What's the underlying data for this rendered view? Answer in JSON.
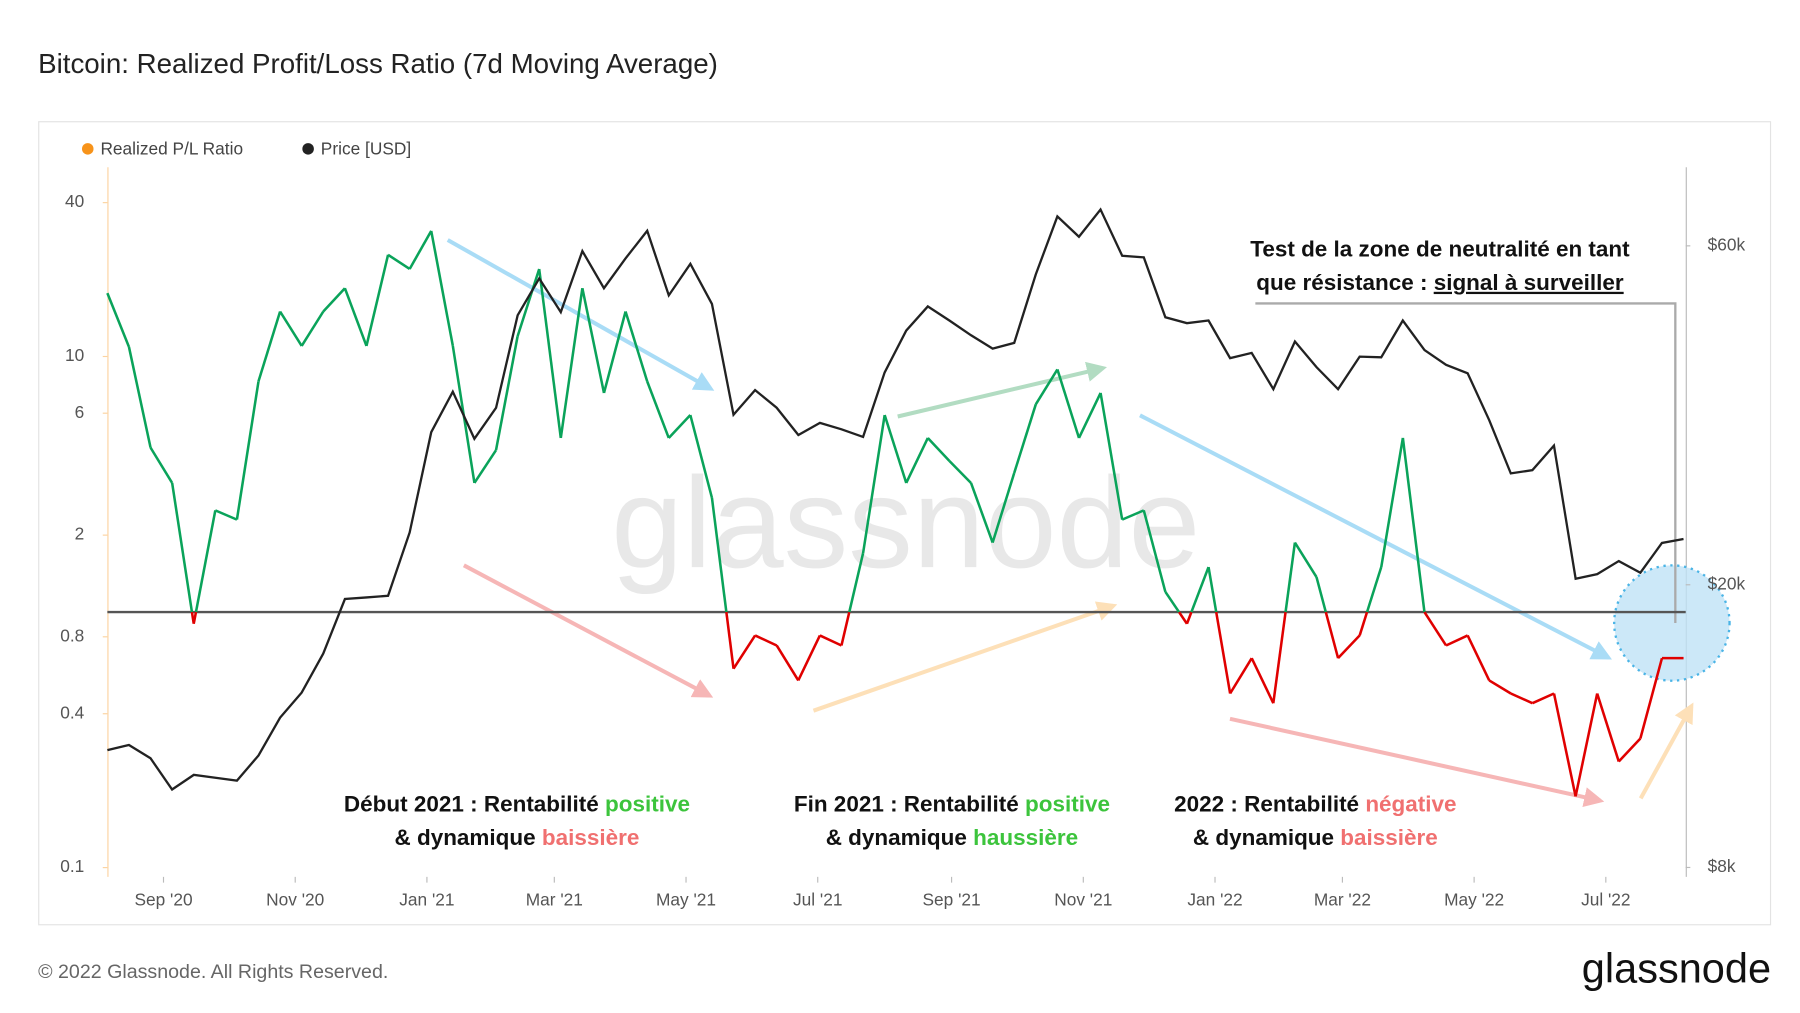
{
  "chart_data": {
    "type": "line",
    "title": "Bitcoin: Realized Profit/Loss Ratio (7d Moving Average)",
    "footer": "© 2022 Glassnode. All Rights Reserved.",
    "logo": "glassnode",
    "watermark": "glassnode",
    "x": [
      "2020-08-06",
      "2020-08-16",
      "2020-08-26",
      "2020-09-05",
      "2020-09-15",
      "2020-09-25",
      "2020-10-05",
      "2020-10-15",
      "2020-10-25",
      "2020-11-04",
      "2020-11-14",
      "2020-11-24",
      "2020-12-04",
      "2020-12-14",
      "2020-12-24",
      "2021-01-03",
      "2021-01-13",
      "2021-01-23",
      "2021-02-02",
      "2021-02-12",
      "2021-02-22",
      "2021-03-04",
      "2021-03-14",
      "2021-03-24",
      "2021-04-03",
      "2021-04-13",
      "2021-04-23",
      "2021-05-03",
      "2021-05-13",
      "2021-05-23",
      "2021-06-02",
      "2021-06-12",
      "2021-06-22",
      "2021-07-02",
      "2021-07-12",
      "2021-07-22",
      "2021-08-01",
      "2021-08-11",
      "2021-08-21",
      "2021-08-31",
      "2021-09-10",
      "2021-09-20",
      "2021-09-30",
      "2021-10-10",
      "2021-10-20",
      "2021-10-30",
      "2021-11-09",
      "2021-11-19",
      "2021-11-29",
      "2021-12-09",
      "2021-12-19",
      "2021-12-29",
      "2022-01-08",
      "2022-01-18",
      "2022-01-28",
      "2022-02-07",
      "2022-02-17",
      "2022-02-27",
      "2022-03-09",
      "2022-03-19",
      "2022-03-29",
      "2022-04-08",
      "2022-04-18",
      "2022-04-28",
      "2022-05-08",
      "2022-05-18",
      "2022-05-28",
      "2022-06-07",
      "2022-06-17",
      "2022-06-27",
      "2022-07-07",
      "2022-07-17",
      "2022-07-27",
      "2022-08-06"
    ],
    "series": [
      {
        "name": "Realized P/L Ratio",
        "color": "#f7931a",
        "above_color": "#0aa35a",
        "below_color": "#e00000",
        "threshold": 1,
        "values": [
          17.7,
          10.9,
          4.4,
          3.2,
          0.9,
          2.5,
          2.3,
          8,
          15,
          11,
          15,
          18.5,
          11,
          25,
          22,
          31,
          11,
          3.2,
          4.3,
          12,
          22,
          4.8,
          18.5,
          7.2,
          15,
          8,
          4.8,
          5.9,
          2.8,
          0.6,
          0.81,
          0.74,
          0.54,
          0.81,
          0.74,
          1.7,
          5.9,
          3.2,
          4.8,
          3.9,
          3.2,
          1.87,
          3.5,
          6.5,
          8.9,
          4.8,
          7.2,
          2.3,
          2.5,
          1.2,
          0.9,
          1.5,
          0.48,
          0.66,
          0.44,
          1.87,
          1.37,
          0.66,
          0.81,
          1.5,
          4.8,
          1.0,
          0.74,
          0.81,
          0.54,
          0.48,
          0.44,
          0.48,
          0.19,
          0.48,
          0.26,
          0.32,
          0.66,
          0.66
        ]
      },
      {
        "name": "Price [USD]",
        "color": "#222222",
        "axis": "y2",
        "values": [
          11700,
          11900,
          11400,
          10300,
          10800,
          10700,
          10600,
          11500,
          13000,
          14100,
          16000,
          19100,
          19200,
          19300,
          23700,
          32800,
          37400,
          32100,
          35500,
          47900,
          54000,
          48400,
          59000,
          52300,
          57600,
          63000,
          51100,
          56600,
          49700,
          34700,
          37600,
          35500,
          32500,
          33800,
          33100,
          32300,
          39800,
          45600,
          49300,
          47100,
          44900,
          43000,
          43800,
          54700,
          66000,
          61800,
          67500,
          58100,
          57800,
          47600,
          46700,
          47100,
          41700,
          42400,
          37700,
          44000,
          40500,
          37700,
          41900,
          41800,
          47100,
          42800,
          40800,
          39700,
          34100,
          28700,
          29000,
          31400,
          20400,
          20700,
          21600,
          20800,
          22900,
          23200
        ]
      }
    ],
    "xlim": [
      "2020-08-06",
      "2022-08-07"
    ],
    "xticks": [
      {
        "value": "2020-09-01",
        "label": "Sep '20"
      },
      {
        "value": "2020-11-01",
        "label": "Nov '20"
      },
      {
        "value": "2021-01-01",
        "label": "Jan '21"
      },
      {
        "value": "2021-03-01",
        "label": "Mar '21"
      },
      {
        "value": "2021-05-01",
        "label": "May '21"
      },
      {
        "value": "2021-07-01",
        "label": "Jul '21"
      },
      {
        "value": "2021-09-01",
        "label": "Sep '21"
      },
      {
        "value": "2021-11-01",
        "label": "Nov '21"
      },
      {
        "value": "2022-01-01",
        "label": "Jan '22"
      },
      {
        "value": "2022-03-01",
        "label": "Mar '22"
      },
      {
        "value": "2022-05-01",
        "label": "May '22"
      },
      {
        "value": "2022-07-01",
        "label": "Jul '22"
      }
    ],
    "ylog": true,
    "ylim": [
      0.092,
      55
    ],
    "yticks": [
      0.1,
      0.4,
      0.8,
      2,
      6,
      10,
      40
    ],
    "y2log": true,
    "y2lim": [
      7760,
      77400
    ],
    "y2ticks": [
      {
        "value": 8000,
        "label": "$8k"
      },
      {
        "value": 20000,
        "label": "$20k"
      },
      {
        "value": 60000,
        "label": "$60k"
      }
    ],
    "annotations": [
      {
        "lines": [
          [
            {
              "text": "Test de la zone de neutralité en tant"
            }
          ],
          [
            {
              "text": "que résistance : "
            },
            {
              "text": "signal à surveiller",
              "underline": true
            }
          ]
        ]
      },
      {
        "lines": [
          [
            {
              "text": "Début 2021 : Rentabilité "
            },
            {
              "text": "positive",
              "color": "#3cc43c"
            }
          ],
          [
            {
              "text": "& dynamique "
            },
            {
              "text": "baissière",
              "color": "#f07070"
            }
          ]
        ]
      },
      {
        "lines": [
          [
            {
              "text": "Fin 2021 : Rentabilité "
            },
            {
              "text": "positive",
              "color": "#3cc43c"
            }
          ],
          [
            {
              "text": "& dynamique "
            },
            {
              "text": "haussière",
              "color": "#3cc43c"
            }
          ]
        ]
      },
      {
        "lines": [
          [
            {
              "text": "2022 : Rentabilité "
            },
            {
              "text": "négative",
              "color": "#f07070"
            }
          ],
          [
            {
              "text": "& dynamique "
            },
            {
              "text": "baissière",
              "color": "#f07070"
            }
          ]
        ]
      }
    ]
  }
}
